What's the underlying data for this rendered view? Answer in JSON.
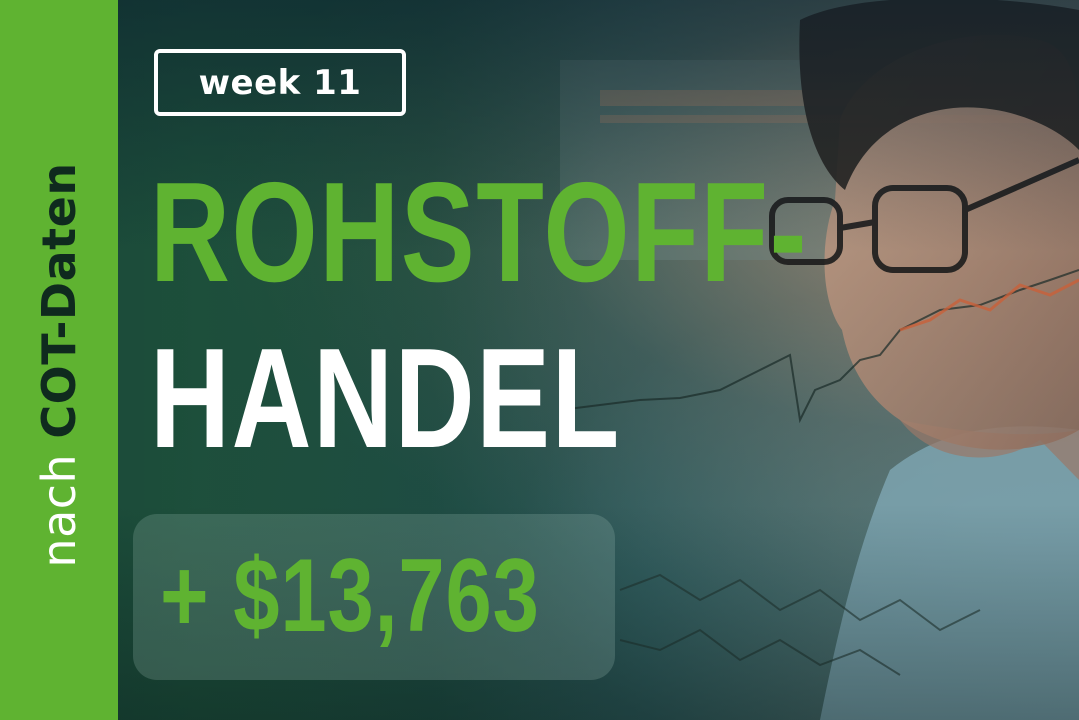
{
  "side_label": {
    "regular": "nach ",
    "bold": "COT-Daten"
  },
  "badge": {
    "label": "week 11"
  },
  "headline": {
    "line1": "ROHSTOFF-",
    "line2": "HANDEL"
  },
  "amount": {
    "text": "+ $13,763"
  },
  "colors": {
    "accent": "#5fb331",
    "dark": "#0f2a1e",
    "text": "#ffffff"
  },
  "background_image": {
    "icon": "trader-with-glasses-and-stock-charts-photo"
  }
}
